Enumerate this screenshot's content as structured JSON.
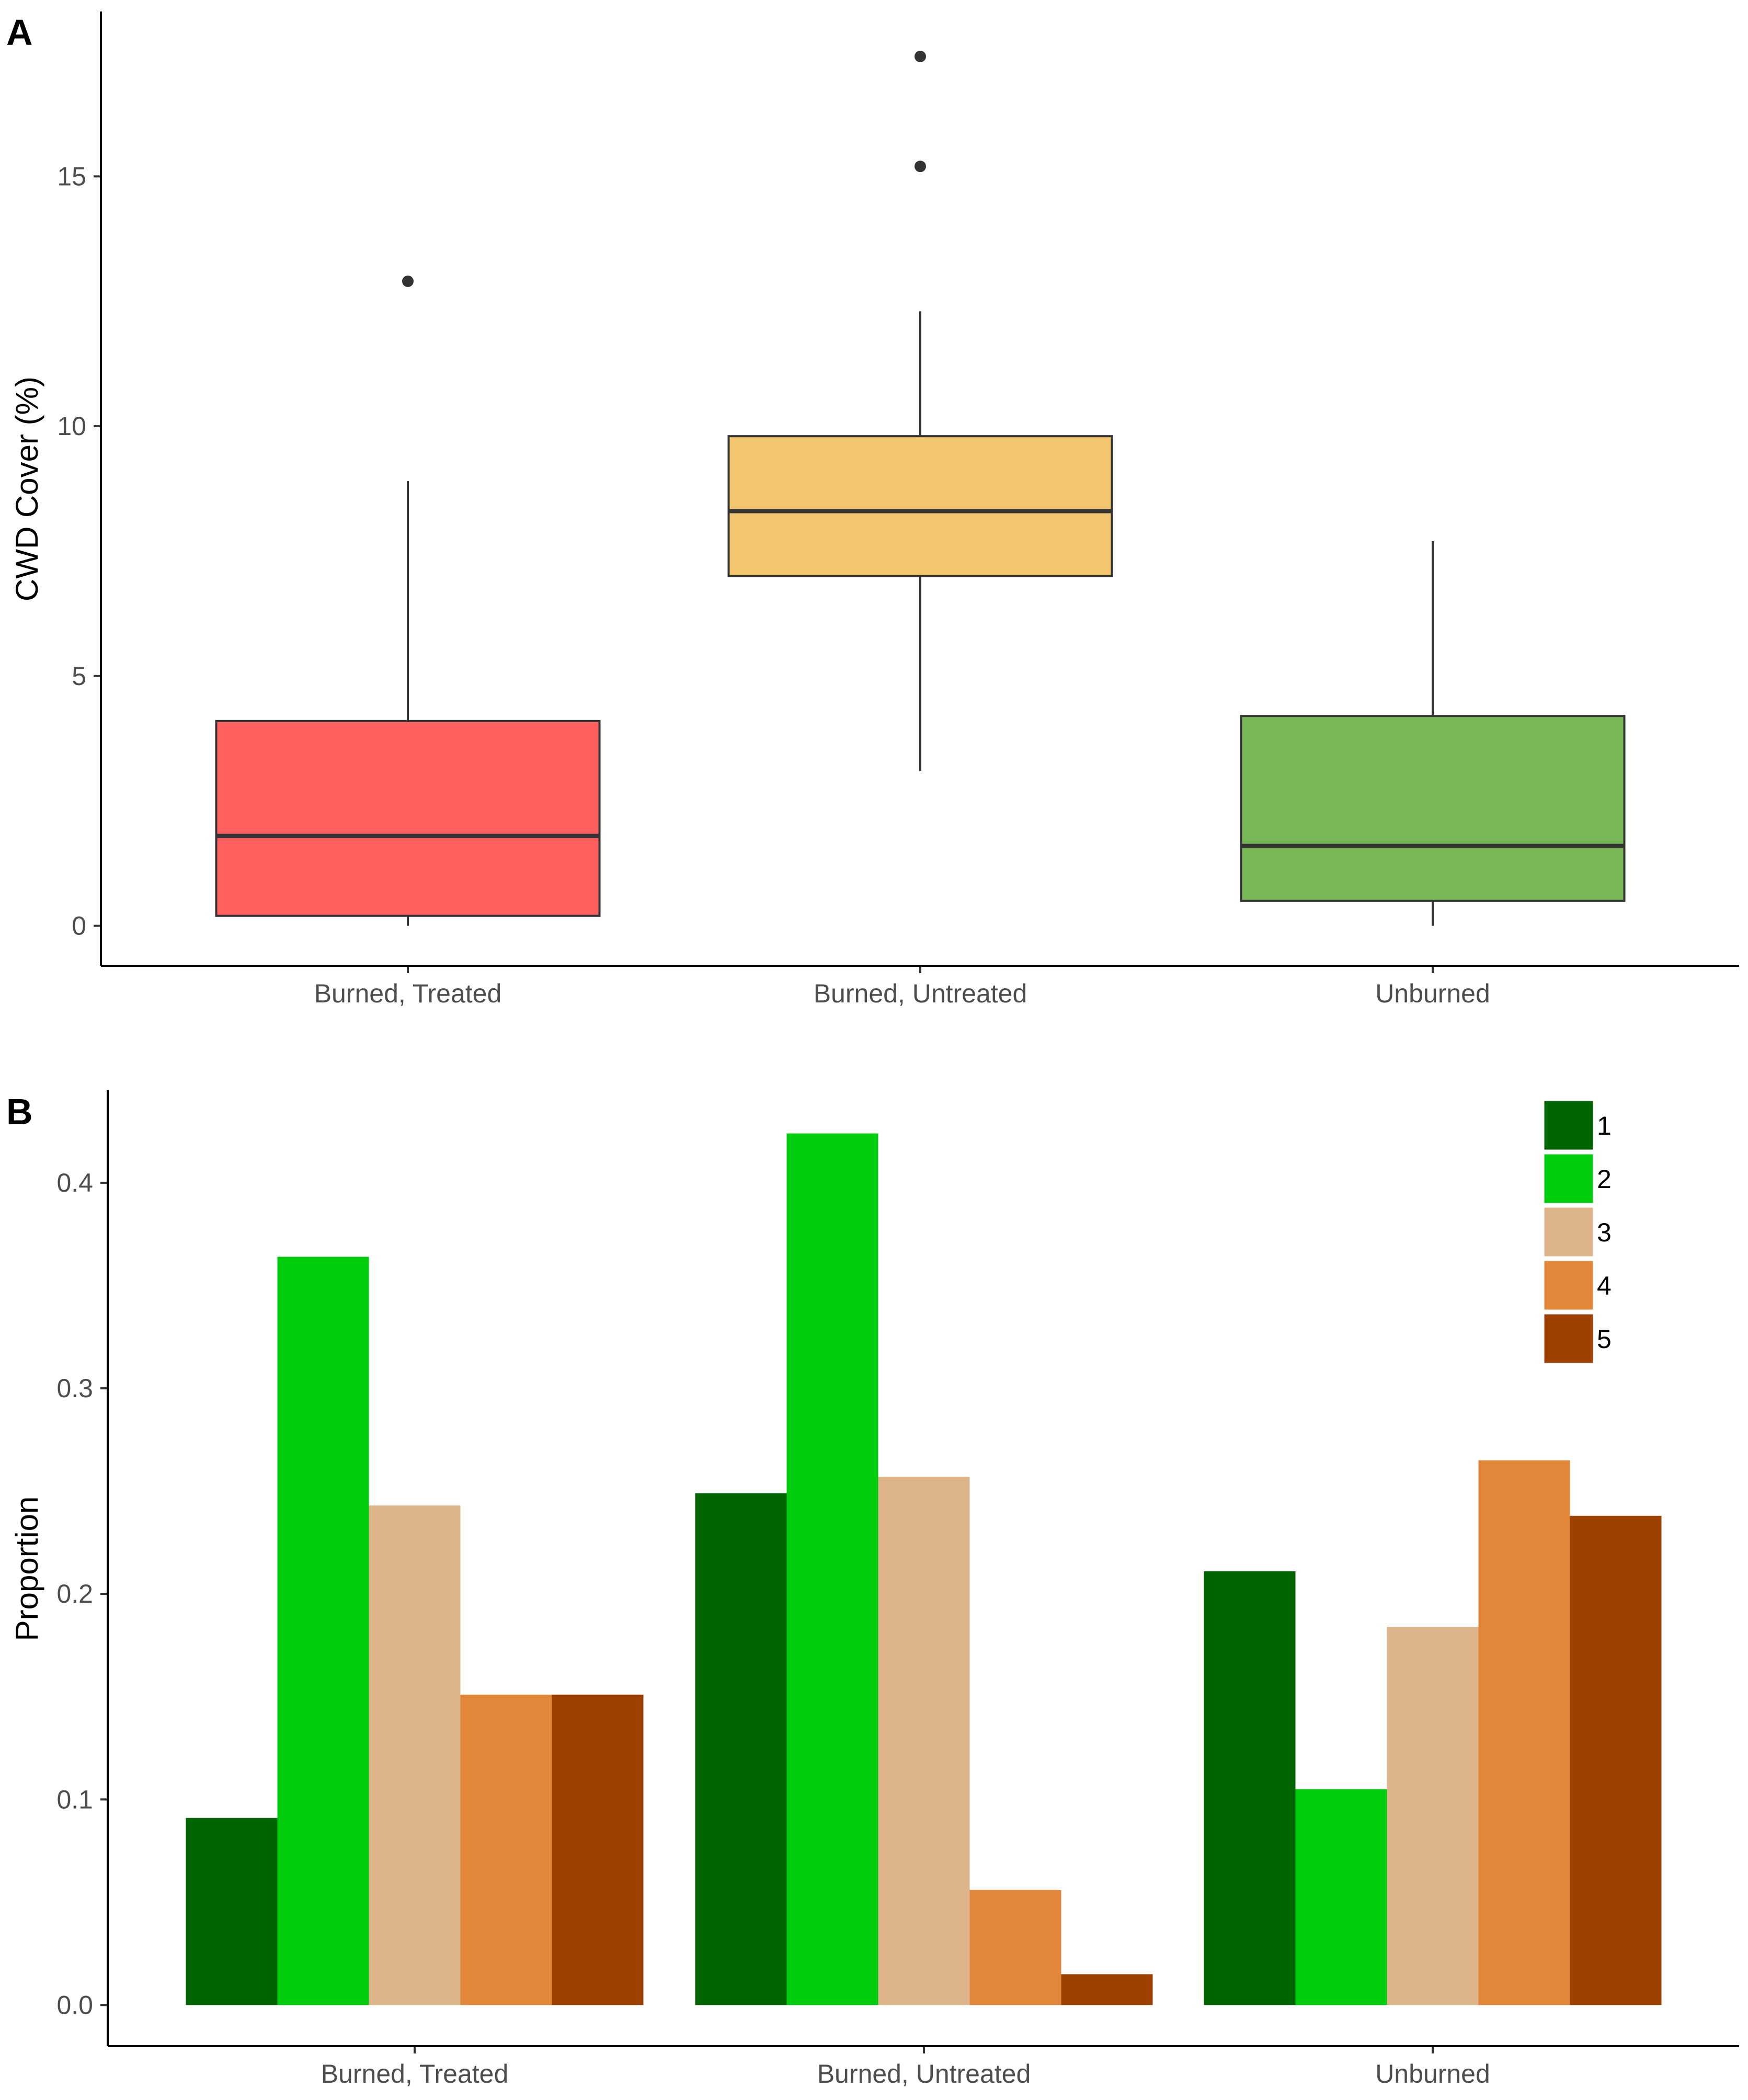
{
  "chart_data": [
    {
      "panel": "A",
      "type": "boxplot",
      "ylabel": "CWD Cover (%)",
      "xlabel": "",
      "ylim": [
        -0.8,
        18.3
      ],
      "yticks": [
        0,
        5,
        10,
        15
      ],
      "categories": [
        "Burned, Treated",
        "Burned, Untreated",
        "Unburned"
      ],
      "boxes": [
        {
          "category": "Burned, Treated",
          "color": "#ff5f5f",
          "whisker_low": 0.0,
          "q1": 0.2,
          "median": 1.8,
          "q3": 4.1,
          "whisker_high": 8.9,
          "outliers": [
            12.9
          ]
        },
        {
          "category": "Burned, Untreated",
          "color": "#f2c56e",
          "whisker_low": 3.1,
          "q1": 7.0,
          "median": 8.3,
          "q3": 9.8,
          "whisker_high": 12.3,
          "outliers": [
            15.2,
            17.4
          ]
        },
        {
          "category": "Unburned",
          "color": "#77b756",
          "whisker_low": 0.0,
          "q1": 0.5,
          "median": 1.6,
          "q3": 4.2,
          "whisker_high": 7.7,
          "outliers": []
        }
      ]
    },
    {
      "panel": "B",
      "type": "bar",
      "ylabel": "Proportion",
      "xlabel": "",
      "ylim": [
        -0.02,
        0.445
      ],
      "yticks": [
        0.0,
        0.1,
        0.2,
        0.3,
        0.4
      ],
      "ytick_labels": [
        "0.0",
        "0.1",
        "0.2",
        "0.3",
        "0.4"
      ],
      "categories": [
        "Burned, Treated",
        "Burned, Untreated",
        "Unburned"
      ],
      "legend_position": "top-right",
      "series": [
        {
          "name": "1",
          "color": "#006400",
          "values": [
            0.091,
            0.249,
            0.211
          ]
        },
        {
          "name": "2",
          "color": "#00cd0d",
          "values": [
            0.364,
            0.424,
            0.105
          ]
        },
        {
          "name": "3",
          "color": "#deb48a",
          "values": [
            0.243,
            0.257,
            0.184
          ]
        },
        {
          "name": "4",
          "color": "#e2873a",
          "values": [
            0.151,
            0.056,
            0.265
          ]
        },
        {
          "name": "5",
          "color": "#9c4100",
          "values": [
            0.151,
            0.015,
            0.238
          ]
        }
      ]
    }
  ]
}
